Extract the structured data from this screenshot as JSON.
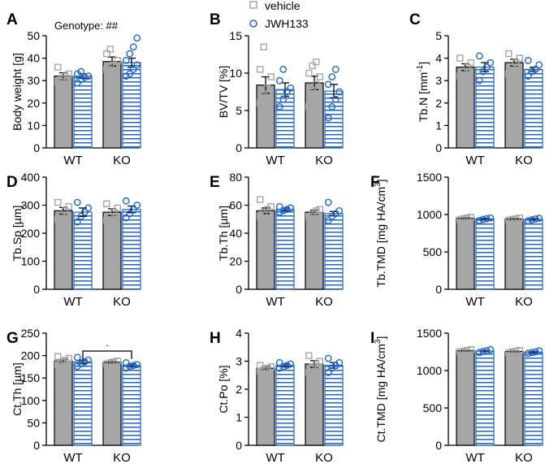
{
  "colors": {
    "vehicle_bar": "#a6a6a6",
    "vehicle_point": "#a6a6a6",
    "jwh_bar_fill": "#ffffff",
    "jwh_stripe": "#1f66c8",
    "jwh_point": "#1f66c8",
    "axis": "#000000"
  },
  "legend": {
    "vehicle": "vehicle",
    "jwh133": "JWH133"
  },
  "chart_data": [
    {
      "type": "bar",
      "panel": "A",
      "ylabel": "Body weight [g]",
      "ylabel_unit_superscript": "",
      "ylim": [
        0,
        50
      ],
      "yticks": [
        0,
        10,
        20,
        30,
        40,
        50
      ],
      "ytick_labels": [
        "0",
        "10",
        "20",
        "30",
        "40",
        "50"
      ],
      "categories": [
        "WT",
        "KO"
      ],
      "annotation": "Genotype: ##",
      "series": [
        {
          "name": "vehicle",
          "values": [
            32,
            38.5
          ],
          "errors": [
            1.5,
            2
          ],
          "points": [
            [
              29.5,
              31,
              32,
              33,
              36
            ],
            [
              35,
              36.5,
              37,
              39,
              42,
              44
            ]
          ]
        },
        {
          "name": "JWH133",
          "values": [
            32,
            38
          ],
          "errors": [
            1,
            2
          ],
          "points": [
            [
              29,
              30.5,
              31.5,
              32,
              33,
              34
            ],
            [
              32,
              33,
              35,
              37,
              39,
              42,
              45,
              49
            ]
          ]
        }
      ]
    },
    {
      "type": "bar",
      "panel": "B",
      "ylabel": "BV/TV [%]",
      "ylabel_unit_superscript": "",
      "ylim": [
        0,
        15
      ],
      "yticks": [
        0,
        5,
        10,
        15
      ],
      "ytick_labels": [
        "0",
        "5",
        "10",
        "15"
      ],
      "categories": [
        "WT",
        "KO"
      ],
      "series": [
        {
          "name": "vehicle",
          "values": [
            8.4,
            8.7
          ],
          "errors": [
            1.1,
            0.9
          ],
          "points": [
            [
              6,
              7,
              8,
              9.5,
              10.5,
              13.5
            ],
            [
              5.5,
              7.5,
              8.5,
              9.5,
              10,
              11,
              11.5
            ]
          ]
        },
        {
          "name": "JWH133",
          "values": [
            7.8,
            7.6
          ],
          "errors": [
            0.9,
            0.9
          ],
          "points": [
            [
              5.5,
              6.5,
              7.5,
              8,
              9,
              10.5
            ],
            [
              4,
              5.5,
              6.5,
              7.5,
              8.5,
              9.5,
              10.5
            ]
          ]
        }
      ]
    },
    {
      "type": "bar",
      "panel": "C",
      "ylabel": "Tb.N [mm",
      "ylabel_unit_superscript": "-1",
      "ylabel_suffix": "]",
      "ylim": [
        0,
        5
      ],
      "yticks": [
        0,
        1,
        2,
        3,
        4,
        5
      ],
      "ytick_labels": [
        "0",
        "1",
        "2",
        "3",
        "4",
        "5"
      ],
      "categories": [
        "WT",
        "KO"
      ],
      "series": [
        {
          "name": "vehicle",
          "values": [
            3.6,
            3.8
          ],
          "errors": [
            0.15,
            0.15
          ],
          "points": [
            [
              3.2,
              3.4,
              3.6,
              3.8,
              4.0
            ],
            [
              3.3,
              3.6,
              3.8,
              4.0,
              4.2
            ]
          ]
        },
        {
          "name": "JWH133",
          "values": [
            3.6,
            3.5
          ],
          "errors": [
            0.2,
            0.1
          ],
          "points": [
            [
              3.0,
              3.4,
              3.6,
              3.8,
              4.1
            ],
            [
              3.2,
              3.4,
              3.5,
              3.7,
              3.9
            ]
          ]
        }
      ]
    },
    {
      "type": "bar",
      "panel": "D",
      "ylabel": "Tb.Sp [µm]",
      "ylabel_unit_superscript": "",
      "ylim": [
        0,
        400
      ],
      "yticks": [
        0,
        100,
        200,
        300,
        400
      ],
      "ytick_labels": [
        "0",
        "100",
        "200",
        "300",
        "400"
      ],
      "categories": [
        "WT",
        "KO"
      ],
      "series": [
        {
          "name": "vehicle",
          "values": [
            280,
            275
          ],
          "errors": [
            12,
            12
          ],
          "points": [
            [
              250,
              265,
              280,
              295,
              310
            ],
            [
              245,
              260,
              275,
              290,
              305
            ]
          ]
        },
        {
          "name": "JWH133",
          "values": [
            275,
            285
          ],
          "errors": [
            15,
            12
          ],
          "points": [
            [
              240,
              260,
              275,
              290,
              310
            ],
            [
              255,
              270,
              285,
              300,
              315
            ]
          ]
        }
      ]
    },
    {
      "type": "bar",
      "panel": "E",
      "ylabel": "Tb.Th [µm]",
      "ylabel_unit_superscript": "",
      "ylim": [
        0,
        80
      ],
      "yticks": [
        0,
        20,
        40,
        60,
        80
      ],
      "ytick_labels": [
        "0",
        "20",
        "40",
        "60",
        "80"
      ],
      "categories": [
        "WT",
        "KO"
      ],
      "series": [
        {
          "name": "vehicle",
          "values": [
            56,
            55
          ],
          "errors": [
            2,
            1.5
          ],
          "points": [
            [
              52,
              55,
              57,
              59,
              64
            ],
            [
              52,
              54,
              56,
              57
            ]
          ]
        },
        {
          "name": "JWH133",
          "values": [
            57,
            54
          ],
          "errors": [
            1,
            1.5
          ],
          "points": [
            [
              55,
              56,
              57,
              58,
              59
            ],
            [
              49,
              52,
              54,
              56,
              62
            ]
          ]
        }
      ]
    },
    {
      "type": "bar",
      "panel": "F",
      "ylabel": "Tb.TMD [mg HA/cm",
      "ylabel_unit_superscript": "3",
      "ylabel_suffix": "]",
      "ylim": [
        0,
        1500
      ],
      "yticks": [
        0,
        500,
        1000,
        1500
      ],
      "ytick_labels": [
        "0",
        "500",
        "1000",
        "1500"
      ],
      "categories": [
        "WT",
        "KO"
      ],
      "series": [
        {
          "name": "vehicle",
          "values": [
            950,
            940
          ],
          "errors": [
            10,
            10
          ],
          "points": [
            [
              930,
              945,
              955,
              965
            ],
            [
              925,
              935,
              945,
              955
            ]
          ]
        },
        {
          "name": "JWH133",
          "values": [
            940,
            935
          ],
          "errors": [
            10,
            10
          ],
          "points": [
            [
              920,
              935,
              945,
              955
            ],
            [
              915,
              930,
              940,
              950
            ]
          ]
        }
      ]
    },
    {
      "type": "bar",
      "panel": "G",
      "ylabel": "Ct.Th [µm]",
      "ylabel_unit_superscript": "",
      "ylim": [
        0,
        250
      ],
      "yticks": [
        0,
        50,
        100,
        150,
        200,
        250
      ],
      "ytick_labels": [
        "0",
        "50",
        "100",
        "150",
        "200",
        "250"
      ],
      "categories": [
        "WT",
        "KO"
      ],
      "significance": ".",
      "series": [
        {
          "name": "vehicle",
          "values": [
            188,
            185
          ],
          "errors": [
            4,
            2
          ],
          "points": [
            [
              180,
              186,
              190,
              194,
              198
            ],
            [
              182,
              184,
              186,
              188
            ]
          ]
        },
        {
          "name": "JWH133",
          "values": [
            186,
            178
          ],
          "errors": [
            4,
            3
          ],
          "points": [
            [
              176,
              182,
              186,
              190,
              196
            ],
            [
              172,
              176,
              178,
              180,
              184
            ]
          ]
        }
      ]
    },
    {
      "type": "bar",
      "panel": "H",
      "ylabel": "Ct.Po [%]",
      "ylabel_unit_superscript": "",
      "ylim": [
        0,
        4
      ],
      "yticks": [
        0,
        1,
        2,
        3,
        4
      ],
      "ytick_labels": [
        "0",
        "1",
        "2",
        "3",
        "4"
      ],
      "categories": [
        "WT",
        "KO"
      ],
      "series": [
        {
          "name": "vehicle",
          "values": [
            2.75,
            2.9
          ],
          "errors": [
            0.06,
            0.12
          ],
          "points": [
            [
              2.65,
              2.7,
              2.75,
              2.8,
              2.85
            ],
            [
              2.6,
              2.8,
              2.9,
              3.0,
              3.2
            ]
          ]
        },
        {
          "name": "JWH133",
          "values": [
            2.85,
            2.85
          ],
          "errors": [
            0.05,
            0.1
          ],
          "points": [
            [
              2.75,
              2.8,
              2.85,
              2.9,
              2.95
            ],
            [
              2.6,
              2.75,
              2.85,
              2.95,
              3.1
            ]
          ]
        }
      ]
    },
    {
      "type": "bar",
      "panel": "I",
      "ylabel": "Ct.TMD [mg HA/cm",
      "ylabel_unit_superscript": "3",
      "ylabel_suffix": "]",
      "ylim": [
        0,
        1500
      ],
      "yticks": [
        0,
        500,
        1000,
        1500
      ],
      "ytick_labels": [
        "0",
        "500",
        "1000",
        "1500"
      ],
      "categories": [
        "WT",
        "KO"
      ],
      "series": [
        {
          "name": "vehicle",
          "values": [
            1265,
            1255
          ],
          "errors": [
            8,
            8
          ],
          "points": [
            [
              1250,
              1260,
              1270,
              1280
            ],
            [
              1240,
              1250,
              1260,
              1270
            ]
          ]
        },
        {
          "name": "JWH133",
          "values": [
            1260,
            1245
          ],
          "errors": [
            8,
            8
          ],
          "points": [
            [
              1240,
              1255,
              1265,
              1280
            ],
            [
              1230,
              1240,
              1250,
              1265
            ]
          ]
        }
      ]
    }
  ]
}
